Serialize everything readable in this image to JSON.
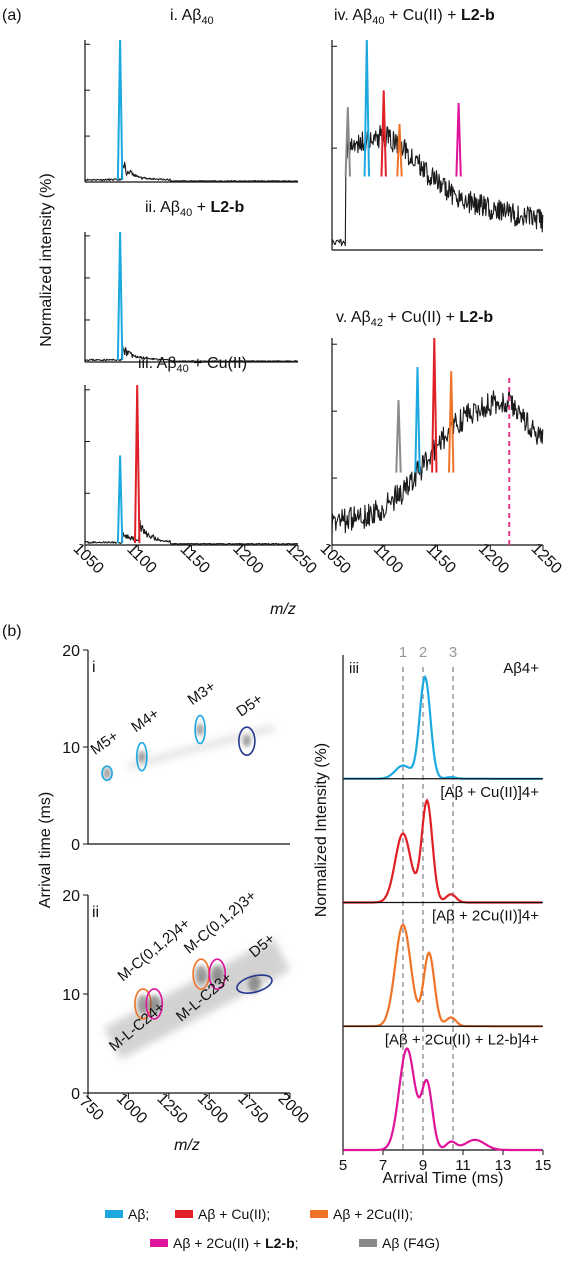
{
  "colors": {
    "abeta": "#1ca9e1",
    "cu1": "#e02027",
    "cu2": "#f07428",
    "cu2l2b": "#e0139b",
    "f4g": "#8a8a8a",
    "dimer": "#25378f",
    "dashed_marker": "#e83c8e",
    "trace": "#1a1a1a",
    "guide": "#999999"
  },
  "panel_a": {
    "label": "(a)",
    "ylabel": "Normalized intensity (%)",
    "xlabel": "m/z",
    "xticks": [
      "1050",
      "1100",
      "1150",
      "1200",
      "1250"
    ],
    "dashed_marker_mz": 1218
  },
  "panel_b": {
    "label": "(b)",
    "ylabel": "Arrival time (ms)",
    "xlabel": "m/z",
    "yticks": [
      "0",
      "10",
      "20"
    ],
    "xticks": [
      "750",
      "1000",
      "1250",
      "1500",
      "1750",
      "2000"
    ],
    "sub_i": "i",
    "sub_ii": "ii",
    "sub_iii": "iii",
    "iii_ylabel": "Normalized Intensity (%)",
    "iii_xlabel": "Arrival Time (ms)",
    "iii_xticks": [
      "5",
      "7",
      "9",
      "11",
      "13",
      "15"
    ],
    "guide_labels": [
      "1",
      "2",
      "3"
    ],
    "guide_times": [
      8.0,
      9.0,
      10.5
    ]
  },
  "legend": {
    "abeta": "Aβ;",
    "cu1": "Aβ + Cu(II);",
    "cu2": "Aβ + 2Cu(II);",
    "cu2l2b_pre": "Aβ + 2Cu(II) + ",
    "cu2l2b_bold": "L2-b",
    "cu2l2b_post": ";",
    "f4g": "Aβ (F4G)"
  },
  "chart_data": [
    {
      "type": "line",
      "subtitle": "i. Aβ40",
      "x_range": [
        1050,
        1250
      ],
      "peaks": [
        {
          "species": "Aβ",
          "mz": 1083,
          "rel_height": 1.0
        }
      ]
    },
    {
      "type": "line",
      "subtitle": "ii. Aβ40 + L2-b",
      "x_range": [
        1050,
        1250
      ],
      "peaks": [
        {
          "species": "Aβ",
          "mz": 1083,
          "rel_height": 1.0
        }
      ]
    },
    {
      "type": "line",
      "subtitle": "iii. Aβ40 + Cu(II)",
      "x_range": [
        1050,
        1250
      ],
      "peaks": [
        {
          "species": "Aβ",
          "mz": 1083,
          "rel_height": 0.56
        },
        {
          "species": "Aβ + Cu(II)",
          "mz": 1099,
          "rel_height": 1.0
        }
      ]
    },
    {
      "type": "line",
      "subtitle": "iv. Aβ40 + Cu(II) + L2-b",
      "x_range": [
        1050,
        1250
      ],
      "peaks": [
        {
          "species": "Aβ (F4G)",
          "mz": 1065,
          "rel_height": 0.68
        },
        {
          "species": "Aβ",
          "mz": 1083,
          "rel_height": 1.0
        },
        {
          "species": "Aβ + Cu(II)",
          "mz": 1099,
          "rel_height": 0.76
        },
        {
          "species": "Aβ + 2Cu(II)",
          "mz": 1114,
          "rel_height": 0.6
        },
        {
          "species": "Aβ + 2Cu(II) + L2-b",
          "mz": 1170,
          "rel_height": 0.7
        }
      ]
    },
    {
      "type": "line",
      "subtitle": "v. Aβ42 + Cu(II) + L2-b",
      "x_range": [
        1050,
        1250
      ],
      "peaks": [
        {
          "species": "Aβ (F4G)",
          "mz": 1113,
          "rel_height": 0.7
        },
        {
          "species": "Aβ",
          "mz": 1131,
          "rel_height": 0.86
        },
        {
          "species": "Aβ + Cu(II)",
          "mz": 1147,
          "rel_height": 1.0
        },
        {
          "species": "Aβ + 2Cu(II)",
          "mz": 1163,
          "rel_height": 0.84
        }
      ]
    },
    {
      "type": "scatter",
      "subtitle": "i",
      "x_range": [
        750,
        2000
      ],
      "y_range": [
        0,
        20
      ],
      "regions": [
        {
          "label": "M5+",
          "species": "Aβ",
          "mz": 868,
          "t": 7.3
        },
        {
          "label": "M4+",
          "species": "Aβ",
          "mz": 1083,
          "t": 9.0
        },
        {
          "label": "M3+",
          "species": "Aβ",
          "mz": 1444,
          "t": 11.8
        },
        {
          "label": "D5+",
          "species": "dimer",
          "mz": 1733,
          "t": 10.6
        }
      ]
    },
    {
      "type": "scatter",
      "subtitle": "ii",
      "x_range": [
        750,
        2000
      ],
      "y_range": [
        0,
        20
      ],
      "regions": [
        {
          "label": "M-C(0,1,2)4+",
          "species": "Aβ + 2Cu(II)",
          "mz": 1090,
          "t": 9.0
        },
        {
          "label": "M-L-C24+",
          "species": "Aβ + 2Cu(II) + L2-b",
          "mz": 1160,
          "t": 9.0
        },
        {
          "label": "M-C(0,1,2)3+",
          "species": "Aβ + 2Cu(II)",
          "mz": 1450,
          "t": 12.0
        },
        {
          "label": "M-L-C23+",
          "species": "Aβ + 2Cu(II) + L2-b",
          "mz": 1550,
          "t": 12.0
        },
        {
          "label": "D5+",
          "species": "dimer",
          "mz": 1780,
          "t": 11.0
        }
      ]
    },
    {
      "type": "line",
      "subtitle": "iii",
      "x_range": [
        5,
        15
      ],
      "xlabel": "Arrival Time (ms)",
      "series": [
        {
          "name": "Aβ4+",
          "color": "#1ca9e1",
          "shoulder": [
            8.0,
            0.13
          ],
          "peak": [
            9.1,
            1.0
          ]
        },
        {
          "name": "[Aβ + Cu(II)]4+",
          "color": "#e02027",
          "shoulder": [
            8.0,
            0.68
          ],
          "peak": [
            9.2,
            1.0
          ]
        },
        {
          "name": "[Aβ + 2Cu(II)]4+",
          "color": "#f07428",
          "shoulder": [
            8.0,
            1.0
          ],
          "peak": [
            9.3,
            0.72
          ]
        },
        {
          "name": "[Aβ + 2Cu(II) + L2-b]4+",
          "color": "#e0139b",
          "shoulder": [
            8.2,
            1.0
          ],
          "peak": [
            9.2,
            0.65
          ]
        }
      ]
    }
  ]
}
